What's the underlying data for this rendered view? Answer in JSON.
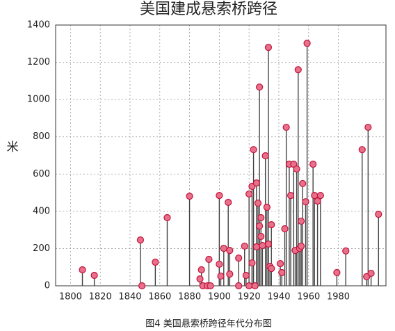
{
  "chart_data": {
    "type": "stem",
    "title": "美国建成悬索桥跨径",
    "y_label": "米",
    "caption": "图4 美国悬索桥跨径年代分布图",
    "x": [
      1808,
      1816,
      1847,
      1848,
      1857,
      1865,
      1880,
      1887,
      1888,
      1889,
      1892,
      1893,
      1894,
      1900,
      1900,
      1901,
      1903,
      1906,
      1907,
      1907,
      1913,
      1913,
      1917,
      1918,
      1920,
      1920,
      1922,
      1922,
      1923,
      1924,
      1925,
      1925,
      1926,
      1927,
      1927,
      1928,
      1928,
      1929,
      1931,
      1932,
      1933,
      1933,
      1934,
      1935,
      1935,
      1941,
      1942,
      1944,
      1945,
      1947,
      1948,
      1950,
      1951,
      1952,
      1953,
      1954,
      1955,
      1955,
      1956,
      1958,
      1959,
      1963,
      1964,
      1966,
      1968,
      1979,
      1985,
      1996,
      1999,
      2000,
      2002,
      2007
    ],
    "values": [
      86,
      56,
      246,
      0,
      127,
      366,
      481,
      37,
      86,
      0,
      0,
      142,
      0,
      485,
      116,
      52,
      201,
      448,
      63,
      190,
      149,
      0,
      213,
      56,
      493,
      0,
      123,
      534,
      731,
      0,
      552,
      209,
      444,
      321,
      1067,
      366,
      265,
      216,
      698,
      422,
      1280,
      224,
      104,
      328,
      93,
      119,
      71,
      306,
      851,
      653,
      485,
      653,
      190,
      627,
      1160,
      201,
      213,
      347,
      549,
      451,
      1302,
      653,
      485,
      455,
      485,
      71,
      187,
      731,
      49,
      851,
      67,
      384
    ],
    "stem_color": "#444444",
    "marker_color": "#e8708a",
    "marker_edge": "#c0143c",
    "xlim": [
      1790,
      2012
    ],
    "ylim": [
      0,
      1400
    ],
    "xticks": [
      1800,
      1820,
      1840,
      1860,
      1880,
      1900,
      1920,
      1940,
      1960,
      1980
    ],
    "yticks": [
      0,
      200,
      400,
      600,
      800,
      1000,
      1200,
      1400
    ],
    "grid": true
  }
}
